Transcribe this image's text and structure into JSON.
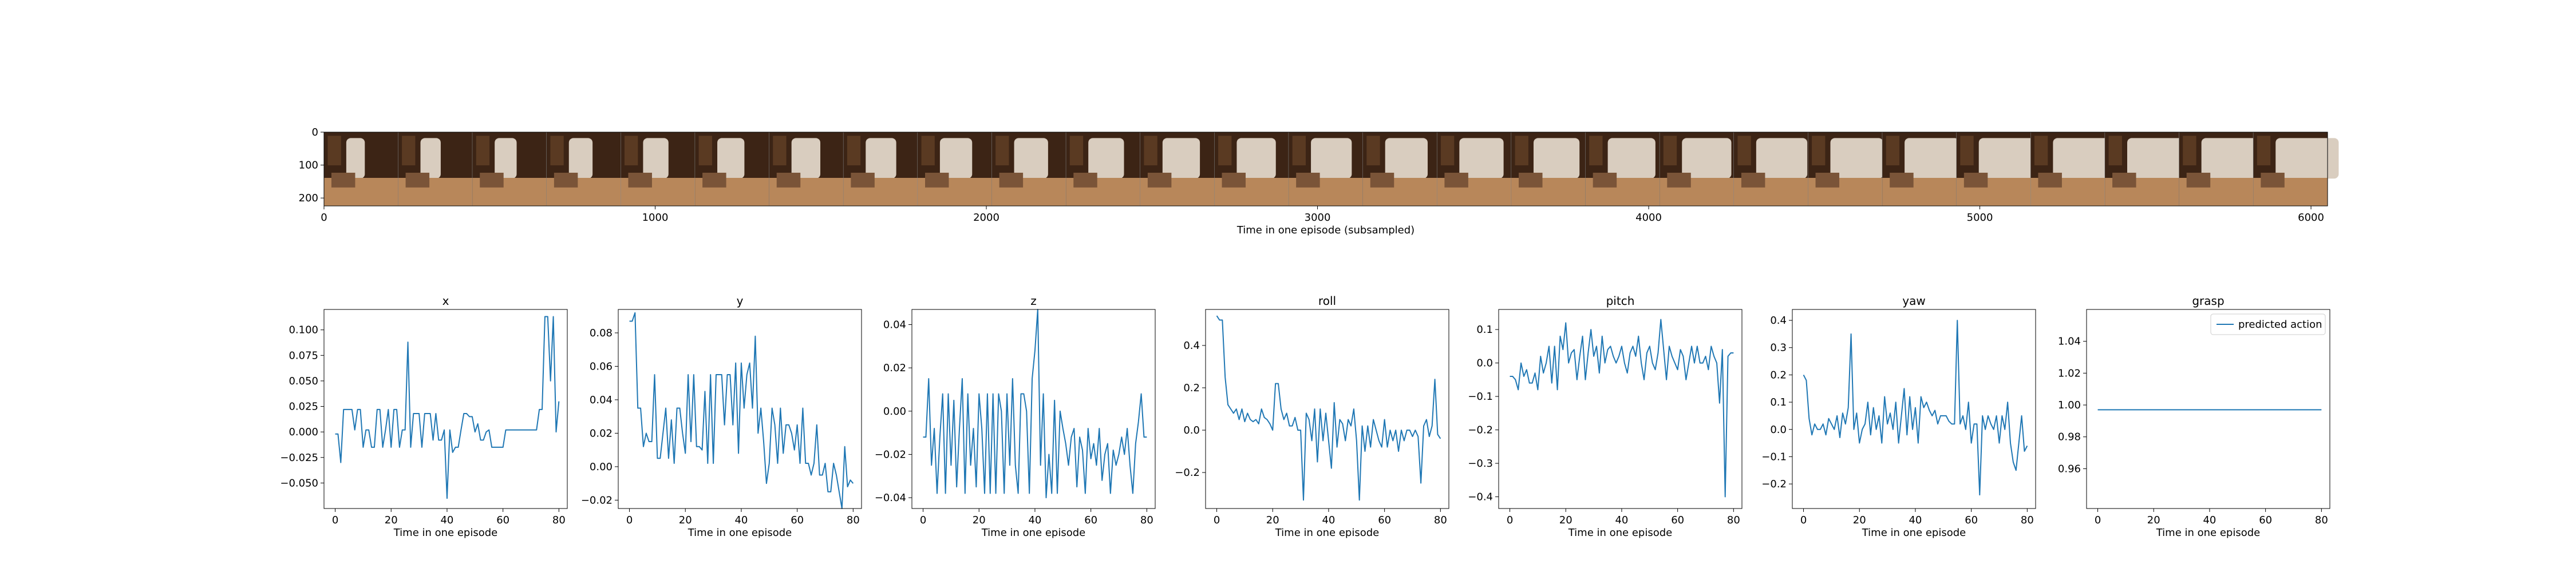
{
  "figure": {
    "line_color": "#1f77b4",
    "frame_strip_colors": [
      "#3c2415",
      "#7a5438",
      "#b8875a",
      "#d9cdbf",
      "#8a8f92",
      "#5a3a22"
    ]
  },
  "chart_data": [
    {
      "id": "strip",
      "type": "image",
      "title": "",
      "xlabel": "Time in one episode (subsampled)",
      "ylabel": "",
      "xlim": [
        0,
        6050
      ],
      "ylim": [
        224,
        0
      ],
      "xticks": [
        "0",
        "1000",
        "2000",
        "3000",
        "4000",
        "5000",
        "6000"
      ],
      "xtick_values": [
        0,
        1000,
        2000,
        3000,
        4000,
        5000,
        6000
      ],
      "yticks": [
        "0",
        "100",
        "200"
      ],
      "ytick_values": [
        0,
        100,
        200
      ],
      "frames": 27,
      "grid": false
    },
    {
      "id": "x",
      "type": "line",
      "title": "x",
      "xlabel": "Time in one episode",
      "ylabel": "",
      "xlim": [
        -4,
        83
      ],
      "ylim": [
        -0.075,
        0.12
      ],
      "grid": false,
      "xticks": [
        "0",
        "20",
        "40",
        "60",
        "80"
      ],
      "xtick_values": [
        0,
        20,
        40,
        60,
        80
      ],
      "yticks": [
        "−0.050",
        "−0.025",
        "0.000",
        "0.025",
        "0.050",
        "0.075",
        "0.100"
      ],
      "ytick_values": [
        -0.05,
        -0.025,
        0,
        0.025,
        0.05,
        0.075,
        0.1
      ],
      "series": [
        {
          "values": [
            -0.002,
            -0.002,
            -0.03,
            0.022,
            0.022,
            0.022,
            0.022,
            0.002,
            0.022,
            0.022,
            -0.015,
            0.002,
            0.002,
            -0.015,
            -0.015,
            0.022,
            0.022,
            -0.015,
            0.002,
            0.022,
            -0.015,
            0.022,
            0.022,
            -0.015,
            0.002,
            0.002,
            0.088,
            -0.015,
            0.018,
            0.018,
            0.018,
            -0.015,
            0.018,
            0.018,
            0.018,
            -0.008,
            0.018,
            -0.008,
            -0.008,
            0.002,
            -0.065,
            0.002,
            -0.02,
            -0.015,
            -0.015,
            0.002,
            0.018,
            0.018,
            0.015,
            0.015,
            0.0,
            0.008,
            -0.008,
            -0.008,
            0.0,
            0.002,
            -0.015,
            -0.015,
            -0.015,
            -0.015,
            -0.015,
            0.002,
            0.002,
            0.002,
            0.002,
            0.002,
            0.002,
            0.002,
            0.002,
            0.002,
            0.002,
            0.002,
            0.002,
            0.022,
            0.022,
            0.113,
            0.113,
            0.05,
            0.113,
            0.0,
            0.03
          ]
        }
      ]
    },
    {
      "id": "y",
      "type": "line",
      "title": "y",
      "xlabel": "Time in one episode",
      "ylabel": "",
      "xlim": [
        -4,
        83
      ],
      "ylim": [
        -0.025,
        0.094
      ],
      "grid": false,
      "xticks": [
        "0",
        "20",
        "40",
        "60",
        "80"
      ],
      "xtick_values": [
        0,
        20,
        40,
        60,
        80
      ],
      "yticks": [
        "−0.02",
        "0.00",
        "0.02",
        "0.04",
        "0.06",
        "0.08"
      ],
      "ytick_values": [
        -0.02,
        0,
        0.02,
        0.04,
        0.06,
        0.08
      ],
      "series": [
        {
          "values": [
            0.087,
            0.087,
            0.092,
            0.035,
            0.035,
            0.012,
            0.02,
            0.015,
            0.015,
            0.055,
            0.005,
            0.005,
            0.02,
            0.035,
            0.005,
            0.028,
            0.002,
            0.035,
            0.035,
            0.02,
            0.008,
            0.055,
            0.015,
            0.055,
            0.012,
            0.012,
            0.01,
            0.045,
            0.002,
            0.055,
            0.002,
            0.055,
            0.055,
            0.055,
            0.025,
            0.055,
            0.055,
            0.025,
            0.062,
            0.008,
            0.062,
            0.035,
            0.055,
            0.062,
            0.035,
            0.078,
            0.02,
            0.035,
            0.015,
            -0.01,
            0.002,
            0.035,
            0.025,
            0.002,
            0.035,
            0.008,
            0.025,
            0.025,
            0.02,
            0.01,
            0.025,
            0.002,
            0.035,
            0.002,
            0.002,
            -0.005,
            0.002,
            0.025,
            -0.005,
            -0.005,
            0.002,
            -0.015,
            -0.015,
            0.002,
            -0.005,
            -0.015,
            -0.025,
            0.012,
            -0.012,
            -0.008,
            -0.01
          ]
        }
      ]
    },
    {
      "id": "z",
      "type": "line",
      "title": "z",
      "xlabel": "Time in one episode",
      "ylabel": "",
      "xlim": [
        -4,
        83
      ],
      "ylim": [
        -0.045,
        0.047
      ],
      "grid": false,
      "xticks": [
        "0",
        "20",
        "40",
        "60",
        "80"
      ],
      "xtick_values": [
        0,
        20,
        40,
        60,
        80
      ],
      "yticks": [
        "−0.04",
        "−0.02",
        "0.00",
        "0.02",
        "0.04"
      ],
      "ytick_values": [
        -0.04,
        -0.02,
        0,
        0.02,
        0.04
      ],
      "series": [
        {
          "values": [
            -0.012,
            -0.012,
            0.015,
            -0.025,
            -0.008,
            -0.038,
            -0.012,
            0.008,
            -0.038,
            0.008,
            -0.025,
            0.005,
            -0.035,
            -0.008,
            0.015,
            -0.038,
            0.008,
            -0.025,
            -0.008,
            -0.035,
            0.008,
            -0.008,
            -0.038,
            0.008,
            -0.038,
            0.008,
            -0.038,
            0.008,
            0.0,
            -0.038,
            0.008,
            -0.025,
            0.015,
            -0.025,
            -0.038,
            0.008,
            0.008,
            0.0,
            -0.038,
            0.015,
            0.028,
            0.047,
            -0.025,
            0.008,
            -0.04,
            -0.02,
            -0.038,
            0.005,
            -0.038,
            0.0,
            -0.008,
            -0.015,
            -0.025,
            -0.012,
            -0.008,
            -0.035,
            -0.012,
            -0.018,
            -0.038,
            -0.008,
            -0.022,
            -0.015,
            -0.025,
            -0.008,
            -0.032,
            -0.02,
            -0.015,
            -0.038,
            -0.018,
            -0.025,
            -0.02,
            -0.012,
            -0.02,
            -0.008,
            -0.025,
            -0.038,
            -0.015,
            -0.005,
            0.008,
            -0.012,
            -0.012
          ]
        }
      ]
    },
    {
      "id": "roll",
      "type": "line",
      "title": "roll",
      "xlabel": "Time in one episode",
      "ylabel": "",
      "xlim": [
        -4,
        83
      ],
      "ylim": [
        -0.37,
        0.57
      ],
      "grid": false,
      "xticks": [
        "0",
        "20",
        "40",
        "60",
        "80"
      ],
      "xtick_values": [
        0,
        20,
        40,
        60,
        80
      ],
      "yticks": [
        "−0.2",
        "0.0",
        "0.2",
        "0.4"
      ],
      "ytick_values": [
        -0.2,
        0,
        0.2,
        0.4
      ],
      "series": [
        {
          "values": [
            0.54,
            0.52,
            0.52,
            0.25,
            0.12,
            0.1,
            0.08,
            0.1,
            0.05,
            0.1,
            0.04,
            0.08,
            0.05,
            0.04,
            0.05,
            0.03,
            0.1,
            0.06,
            0.05,
            0.03,
            0.0,
            0.22,
            0.22,
            0.1,
            0.05,
            0.08,
            0.02,
            0.02,
            0.06,
            0.0,
            0.0,
            -0.33,
            0.08,
            0.05,
            -0.05,
            0.1,
            -0.15,
            0.1,
            -0.05,
            0.08,
            -0.05,
            -0.18,
            0.13,
            -0.08,
            0.05,
            0.03,
            -0.05,
            0.05,
            0.02,
            0.1,
            -0.05,
            -0.33,
            0.02,
            -0.1,
            0.02,
            -0.08,
            0.05,
            0.0,
            -0.05,
            -0.08,
            0.05,
            -0.08,
            0.0,
            -0.05,
            0.0,
            -0.1,
            0.0,
            -0.05,
            0.0,
            0.0,
            -0.03,
            0.0,
            -0.03,
            -0.25,
            0.02,
            0.05,
            -0.03,
            0.02,
            0.24,
            -0.02,
            -0.04
          ]
        }
      ]
    },
    {
      "id": "pitch",
      "type": "line",
      "title": "pitch",
      "xlabel": "Time in one episode",
      "ylabel": "",
      "xlim": [
        -4,
        83
      ],
      "ylim": [
        -0.435,
        0.16
      ],
      "grid": false,
      "xticks": [
        "0",
        "20",
        "40",
        "60",
        "80"
      ],
      "xtick_values": [
        0,
        20,
        40,
        60,
        80
      ],
      "yticks": [
        "−0.4",
        "−0.3",
        "−0.2",
        "−0.1",
        "0.0",
        "0.1"
      ],
      "ytick_values": [
        -0.4,
        -0.3,
        -0.2,
        -0.1,
        0,
        0.1
      ],
      "series": [
        {
          "values": [
            -0.04,
            -0.04,
            -0.05,
            -0.08,
            0.0,
            -0.04,
            -0.02,
            -0.06,
            -0.06,
            -0.03,
            -0.08,
            0.02,
            -0.03,
            0.0,
            0.05,
            -0.06,
            0.05,
            -0.08,
            0.08,
            0.04,
            0.12,
            0.0,
            0.03,
            0.04,
            -0.05,
            0.02,
            0.08,
            -0.05,
            0.03,
            0.1,
            0.02,
            0.05,
            -0.03,
            0.08,
            0.0,
            0.04,
            0.05,
            0.02,
            0.0,
            0.02,
            0.05,
            0.0,
            -0.03,
            0.03,
            0.05,
            0.02,
            0.08,
            0.0,
            -0.05,
            0.03,
            0.05,
            0.0,
            -0.02,
            0.03,
            0.13,
            0.04,
            -0.05,
            0.05,
            0.02,
            0.0,
            -0.02,
            0.04,
            0.02,
            -0.05,
            0.0,
            0.05,
            0.0,
            0.05,
            0.0,
            0.0,
            0.02,
            -0.02,
            0.05,
            0.02,
            0.0,
            -0.12,
            0.04,
            -0.4,
            0.02,
            0.03,
            0.03
          ]
        }
      ]
    },
    {
      "id": "yaw",
      "type": "line",
      "title": "yaw",
      "xlabel": "Time in one episode",
      "ylabel": "",
      "xlim": [
        -4,
        83
      ],
      "ylim": [
        -0.29,
        0.44
      ],
      "grid": false,
      "xticks": [
        "0",
        "20",
        "40",
        "60",
        "80"
      ],
      "xtick_values": [
        0,
        20,
        40,
        60,
        80
      ],
      "yticks": [
        "−0.2",
        "−0.1",
        "0.0",
        "0.1",
        "0.2",
        "0.3",
        "0.4"
      ],
      "ytick_values": [
        -0.2,
        -0.1,
        0,
        0.1,
        0.2,
        0.3,
        0.4
      ],
      "series": [
        {
          "values": [
            0.2,
            0.18,
            0.04,
            -0.02,
            0.02,
            0.0,
            0.0,
            0.02,
            -0.02,
            0.04,
            0.02,
            0.0,
            0.05,
            -0.03,
            0.06,
            0.02,
            0.08,
            0.35,
            0.0,
            0.06,
            -0.05,
            0.0,
            0.02,
            0.1,
            -0.02,
            0.08,
            0.0,
            0.05,
            -0.05,
            0.12,
            0.02,
            0.06,
            0.0,
            0.1,
            -0.05,
            0.05,
            0.15,
            -0.02,
            0.12,
            0.0,
            0.08,
            -0.05,
            0.12,
            0.08,
            0.1,
            0.07,
            0.05,
            0.07,
            0.02,
            0.05,
            0.05,
            0.05,
            0.03,
            0.02,
            0.02,
            0.4,
            0.02,
            0.05,
            0.0,
            0.1,
            -0.05,
            0.02,
            0.02,
            -0.24,
            0.05,
            0.0,
            0.05,
            0.02,
            0.0,
            0.05,
            -0.05,
            0.05,
            0.0,
            0.1,
            -0.05,
            -0.12,
            -0.15,
            -0.05,
            0.05,
            -0.08,
            -0.06
          ]
        }
      ]
    },
    {
      "id": "grasp",
      "type": "line",
      "title": "grasp",
      "xlabel": "Time in one episode",
      "ylabel": "",
      "xlim": [
        -4,
        83
      ],
      "ylim": [
        0.935,
        1.06
      ],
      "grid": false,
      "xticks": [
        "0",
        "20",
        "40",
        "60",
        "80"
      ],
      "xtick_values": [
        0,
        20,
        40,
        60,
        80
      ],
      "yticks": [
        "0.96",
        "0.98",
        "1.00",
        "1.02",
        "1.04"
      ],
      "ytick_values": [
        0.96,
        0.98,
        1.0,
        1.02,
        1.04
      ],
      "legend": {
        "position": "upper right",
        "label": "predicted action"
      },
      "series": [
        {
          "name": "predicted action",
          "values": [
            0.997,
            0.997,
            0.997,
            0.997,
            0.997,
            0.997,
            0.997,
            0.997,
            0.997,
            0.997,
            0.997,
            0.997,
            0.997,
            0.997,
            0.997,
            0.997,
            0.997,
            0.997,
            0.997,
            0.997,
            0.997,
            0.997,
            0.997,
            0.997,
            0.997,
            0.997,
            0.997,
            0.997,
            0.997,
            0.997,
            0.997,
            0.997,
            0.997,
            0.997,
            0.997,
            0.997,
            0.997,
            0.997,
            0.997,
            0.997,
            0.997,
            0.997,
            0.997,
            0.997,
            0.997,
            0.997,
            0.997,
            0.997,
            0.997,
            0.997,
            0.997,
            0.997,
            0.997,
            0.997,
            0.997,
            0.997,
            0.997,
            0.997,
            0.997,
            0.997,
            0.997,
            0.997,
            0.997,
            0.997,
            0.997,
            0.997,
            0.997,
            0.997,
            0.997,
            0.997,
            0.997,
            0.997,
            0.997,
            0.997,
            0.997,
            0.997,
            0.997,
            0.997,
            0.997,
            0.997,
            0.997
          ]
        }
      ]
    }
  ]
}
